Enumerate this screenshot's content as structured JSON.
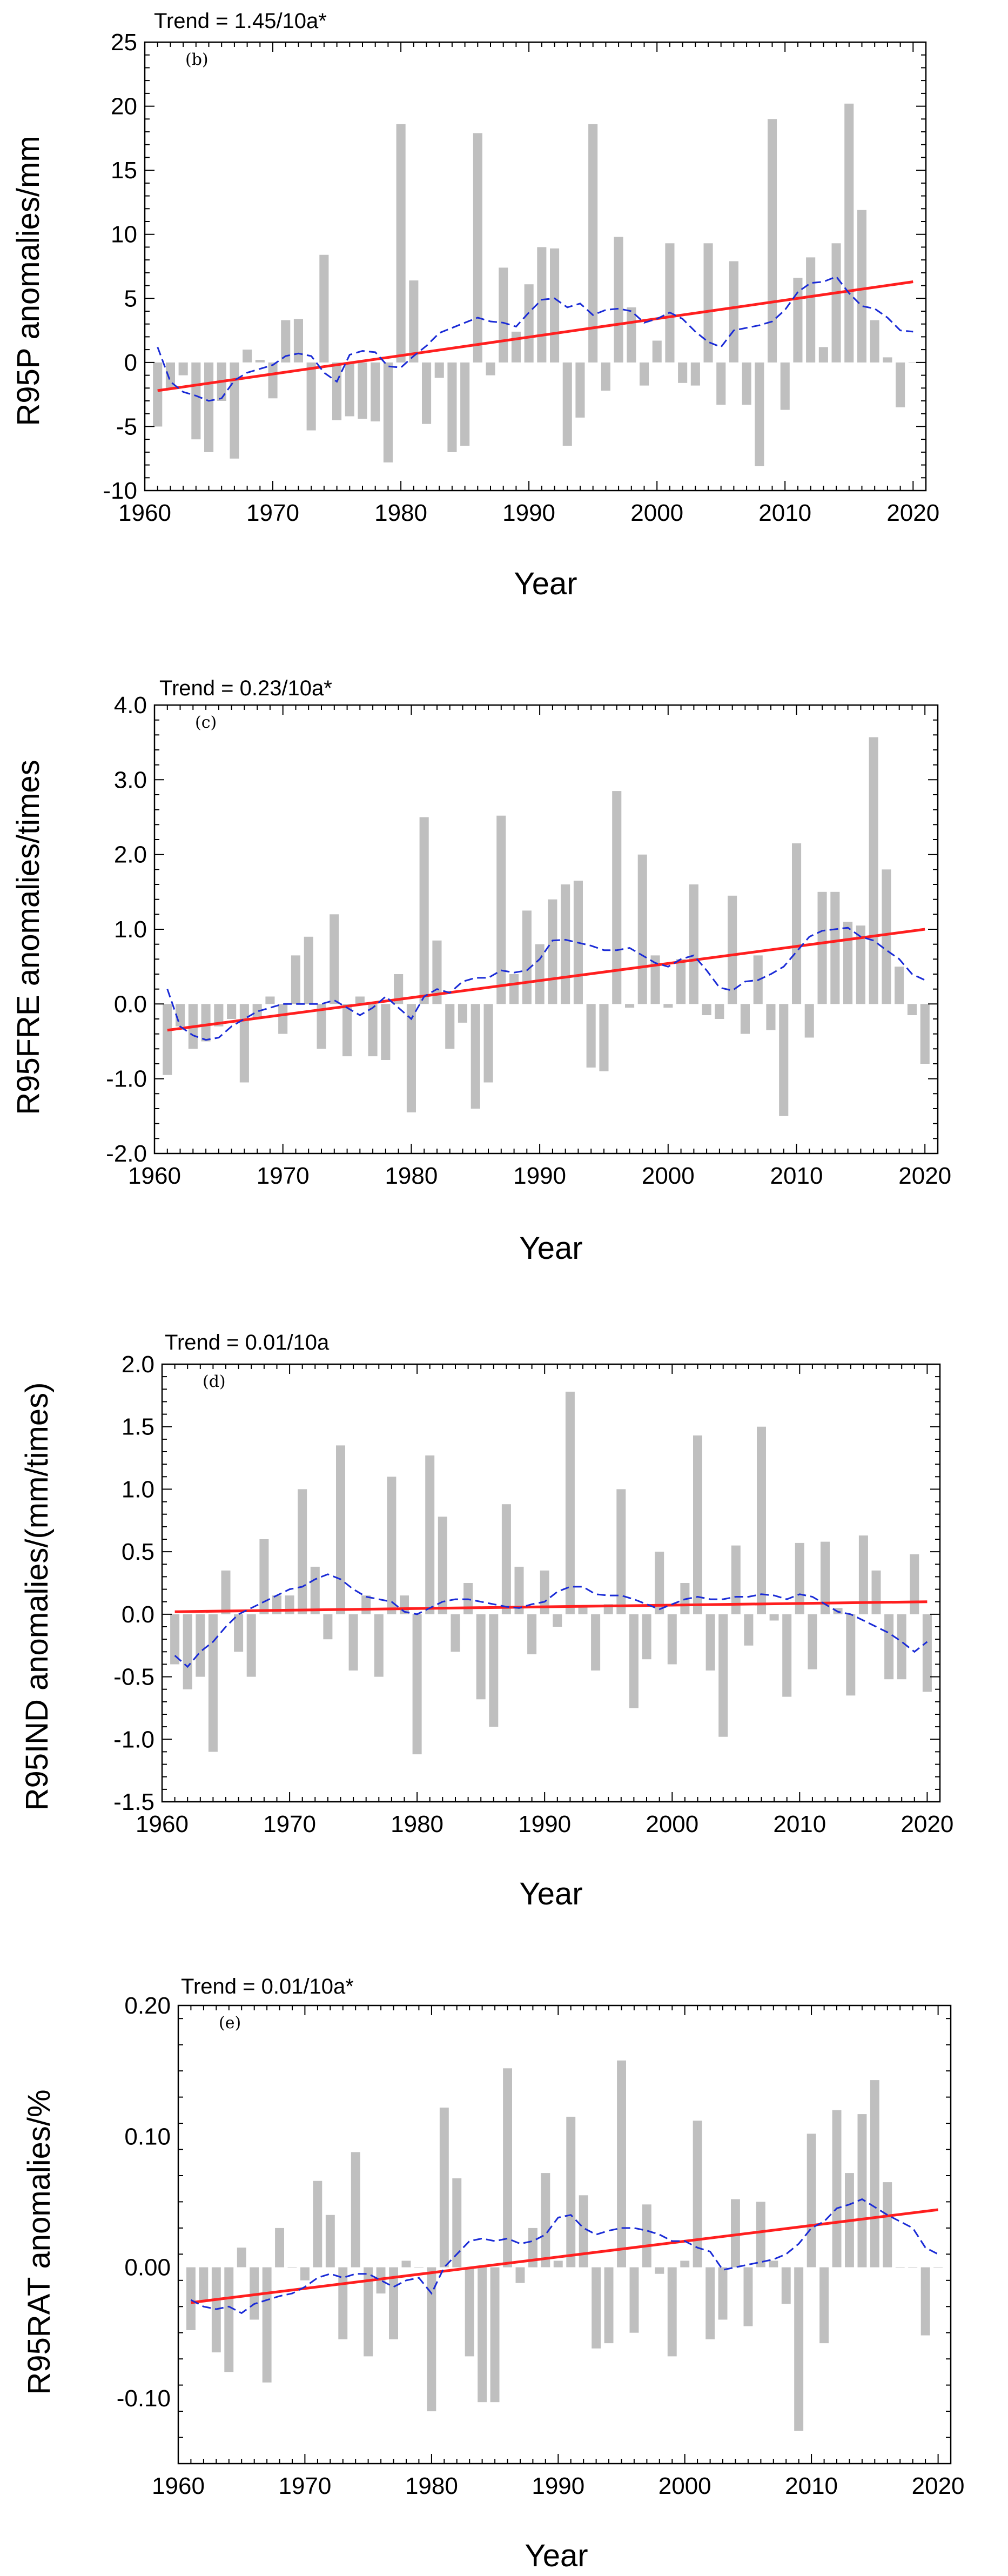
{
  "chart_data": [
    {
      "type": "bar",
      "panel_label": "(b)",
      "trend_label": "Trend = 1.45/10a*",
      "ylabel": "R95P anomalies/mm",
      "xlabel": "Year",
      "xlim": [
        1960,
        2021
      ],
      "ylim": [
        -10,
        25
      ],
      "xticks": [
        1960,
        1970,
        1980,
        1990,
        2000,
        2010,
        2020
      ],
      "yticks": [
        -10,
        -5,
        0,
        5,
        10,
        15,
        20,
        25
      ],
      "ytick_labels": [
        "-10",
        "-5",
        "0",
        "5",
        "10",
        "15",
        "20",
        "25"
      ],
      "years": [
        1961,
        1962,
        1963,
        1964,
        1965,
        1966,
        1967,
        1968,
        1969,
        1970,
        1971,
        1972,
        1973,
        1974,
        1975,
        1976,
        1977,
        1978,
        1979,
        1980,
        1981,
        1982,
        1983,
        1984,
        1985,
        1986,
        1987,
        1988,
        1989,
        1990,
        1991,
        1992,
        1993,
        1994,
        1995,
        1996,
        1997,
        1998,
        1999,
        2000,
        2001,
        2002,
        2003,
        2004,
        2005,
        2006,
        2007,
        2008,
        2009,
        2010,
        2011,
        2012,
        2013,
        2014,
        2015,
        2016,
        2017,
        2018,
        2019,
        2020
      ],
      "values": [
        -5.0,
        -2.0,
        -1.0,
        -6.0,
        -7.0,
        -3.0,
        -7.5,
        1.0,
        0.2,
        -2.8,
        3.3,
        3.4,
        -5.3,
        8.4,
        -4.5,
        -4.2,
        -4.4,
        -4.6,
        -7.8,
        18.6,
        6.4,
        -4.8,
        -1.2,
        -7.0,
        -6.5,
        17.9,
        -1.0,
        7.4,
        2.4,
        6.1,
        9.0,
        8.9,
        -6.5,
        -4.3,
        18.6,
        -2.2,
        9.8,
        4.3,
        -1.8,
        1.7,
        9.3,
        -1.6,
        -1.8,
        9.3,
        -3.3,
        7.9,
        -3.3,
        -8.1,
        19.0,
        -3.7,
        6.6,
        8.2,
        1.2,
        9.3,
        20.2,
        11.9,
        3.3,
        0.4,
        -3.5,
        0.0
      ],
      "smooth": [
        1.2,
        -1.5,
        -2.3,
        -2.6,
        -3.0,
        -2.8,
        -1.4,
        -0.8,
        -0.5,
        -0.2,
        0.5,
        0.7,
        0.5,
        -0.8,
        -1.5,
        0.6,
        0.9,
        0.8,
        -0.3,
        -0.4,
        0.5,
        1.3,
        2.3,
        2.7,
        3.1,
        3.5,
        3.2,
        3.1,
        2.8,
        3.9,
        4.9,
        5.0,
        4.3,
        4.6,
        3.7,
        4.1,
        4.2,
        4.0,
        3.1,
        3.4,
        3.9,
        3.4,
        2.4,
        1.6,
        1.2,
        2.5,
        2.7,
        2.9,
        3.2,
        4.1,
        5.5,
        6.2,
        6.3,
        6.7,
        5.4,
        4.4,
        4.2,
        3.5,
        2.5,
        2.4
      ],
      "trend_line": {
        "x": [
          1961,
          2020
        ],
        "y": [
          -2.2,
          6.3
        ]
      }
    },
    {
      "type": "bar",
      "panel_label": "(c)",
      "trend_label": "Trend = 0.23/10a*",
      "ylabel": "R95FRE anomalies/times",
      "xlabel": "Year",
      "xlim": [
        1960,
        2021
      ],
      "ylim": [
        -2.0,
        4.0
      ],
      "xticks": [
        1960,
        1970,
        1980,
        1990,
        2000,
        2010,
        2020
      ],
      "yticks": [
        -2.0,
        -1.0,
        0.0,
        1.0,
        2.0,
        3.0,
        4.0
      ],
      "ytick_labels": [
        "-2.0",
        "-1.0",
        "0.0",
        "1.0",
        "2.0",
        "3.0",
        "4.0"
      ],
      "years": [
        1961,
        1962,
        1963,
        1964,
        1965,
        1966,
        1967,
        1968,
        1969,
        1970,
        1971,
        1972,
        1973,
        1974,
        1975,
        1976,
        1977,
        1978,
        1979,
        1980,
        1981,
        1982,
        1983,
        1984,
        1985,
        1986,
        1987,
        1988,
        1989,
        1990,
        1991,
        1992,
        1993,
        1994,
        1995,
        1996,
        1997,
        1998,
        1999,
        2000,
        2001,
        2002,
        2003,
        2004,
        2005,
        2006,
        2007,
        2008,
        2009,
        2010,
        2011,
        2012,
        2013,
        2014,
        2015,
        2016,
        2017,
        2018,
        2019,
        2020
      ],
      "values": [
        -0.95,
        -0.3,
        -0.6,
        -0.5,
        -0.3,
        -0.2,
        -1.05,
        -0.2,
        0.1,
        -0.4,
        0.65,
        0.9,
        -0.6,
        1.2,
        -0.7,
        0.1,
        -0.7,
        -0.75,
        0.4,
        -1.45,
        2.5,
        0.85,
        -0.6,
        -0.25,
        -1.4,
        -1.05,
        2.52,
        0.4,
        1.25,
        0.8,
        1.4,
        1.6,
        1.65,
        -0.85,
        -0.9,
        2.85,
        -0.05,
        2.0,
        0.65,
        -0.05,
        0.6,
        1.6,
        -0.15,
        -0.2,
        1.45,
        -0.4,
        0.65,
        -0.35,
        -1.5,
        2.15,
        -0.45,
        1.5,
        1.5,
        1.1,
        1.05,
        3.57,
        1.8,
        0.5,
        -0.15,
        -0.8
      ],
      "smooth": [
        0.2,
        -0.3,
        -0.42,
        -0.48,
        -0.45,
        -0.3,
        -0.2,
        -0.1,
        -0.05,
        0.0,
        0.0,
        0.0,
        0.0,
        0.05,
        -0.05,
        -0.15,
        -0.05,
        0.1,
        -0.05,
        -0.2,
        0.1,
        0.2,
        0.15,
        0.3,
        0.35,
        0.35,
        0.45,
        0.42,
        0.45,
        0.6,
        0.85,
        0.86,
        0.82,
        0.78,
        0.72,
        0.72,
        0.75,
        0.65,
        0.55,
        0.5,
        0.6,
        0.65,
        0.45,
        0.22,
        0.18,
        0.3,
        0.32,
        0.4,
        0.5,
        0.7,
        0.9,
        0.98,
        1.0,
        1.02,
        0.9,
        0.85,
        0.72,
        0.6,
        0.4,
        0.32
      ],
      "trend_line": {
        "x": [
          1961,
          2020
        ],
        "y": [
          -0.35,
          1.0
        ]
      }
    },
    {
      "type": "bar",
      "panel_label": "(d)",
      "trend_label": "Trend = 0.01/10a",
      "ylabel": "R95IND anomalies/(mm/times)",
      "xlabel": "Year",
      "xlim": [
        1960,
        2021
      ],
      "ylim": [
        -1.5,
        2.0
      ],
      "xticks": [
        1960,
        1970,
        1980,
        1990,
        2000,
        2010,
        2020
      ],
      "yticks": [
        -1.5,
        -1.0,
        -0.5,
        0.0,
        0.5,
        1.0,
        1.5,
        2.0
      ],
      "ytick_labels": [
        "-1.5",
        "-1.0",
        "-0.5",
        "0.0",
        "0.5",
        "1.0",
        "1.5",
        "2.0"
      ],
      "years": [
        1961,
        1962,
        1963,
        1964,
        1965,
        1966,
        1967,
        1968,
        1969,
        1970,
        1971,
        1972,
        1973,
        1974,
        1975,
        1976,
        1977,
        1978,
        1979,
        1980,
        1981,
        1982,
        1983,
        1984,
        1985,
        1986,
        1987,
        1988,
        1989,
        1990,
        1991,
        1992,
        1993,
        1994,
        1995,
        1996,
        1997,
        1998,
        1999,
        2000,
        2001,
        2002,
        2003,
        2004,
        2005,
        2006,
        2007,
        2008,
        2009,
        2010,
        2011,
        2012,
        2013,
        2014,
        2015,
        2016,
        2017,
        2018,
        2019,
        2020
      ],
      "values": [
        -0.4,
        -0.6,
        -0.5,
        -1.1,
        0.35,
        -0.3,
        -0.5,
        0.6,
        0.15,
        0.15,
        1.0,
        0.38,
        -0.2,
        1.35,
        -0.45,
        0.15,
        -0.5,
        1.1,
        0.15,
        -1.12,
        1.27,
        0.78,
        -0.3,
        0.25,
        -0.68,
        -0.9,
        0.88,
        0.38,
        -0.32,
        0.35,
        -0.1,
        1.78,
        0.07,
        -0.45,
        0.08,
        1.0,
        -0.75,
        -0.36,
        0.5,
        -0.4,
        0.25,
        1.43,
        -0.45,
        -0.98,
        0.55,
        -0.25,
        1.5,
        -0.05,
        -0.66,
        0.57,
        -0.44,
        0.58,
        0.05,
        -0.65,
        0.63,
        0.35,
        -0.52,
        -0.52,
        0.48,
        -0.62
      ],
      "smooth": [
        -0.33,
        -0.42,
        -0.3,
        -0.22,
        -0.1,
        0.0,
        0.05,
        0.1,
        0.15,
        0.2,
        0.22,
        0.28,
        0.32,
        0.28,
        0.2,
        0.14,
        0.12,
        0.1,
        0.02,
        0.0,
        0.05,
        0.1,
        0.12,
        0.12,
        0.1,
        0.08,
        0.06,
        0.05,
        0.08,
        0.1,
        0.18,
        0.22,
        0.22,
        0.16,
        0.15,
        0.15,
        0.12,
        0.08,
        0.04,
        0.08,
        0.12,
        0.14,
        0.12,
        0.12,
        0.14,
        0.14,
        0.16,
        0.15,
        0.12,
        0.16,
        0.14,
        0.08,
        0.02,
        0.0,
        -0.05,
        -0.1,
        -0.15,
        -0.22,
        -0.3,
        -0.22
      ],
      "trend_line": {
        "x": [
          1961,
          2020
        ],
        "y": [
          0.02,
          0.1
        ]
      }
    },
    {
      "type": "bar",
      "panel_label": "(e)",
      "trend_label": "Trend = 0.01/10a*",
      "ylabel": "R95RAT anomalies/%",
      "xlabel": "Year",
      "xlim": [
        1960,
        2021
      ],
      "ylim": [
        -0.15,
        0.2
      ],
      "xticks": [
        1960,
        1970,
        1980,
        1990,
        2000,
        2010,
        2020
      ],
      "yticks": [
        -0.1,
        0.0,
        0.1,
        0.2
      ],
      "ytick_labels": [
        "-0.10",
        "0.00",
        "0.10",
        "0.20"
      ],
      "years": [
        1961,
        1962,
        1963,
        1964,
        1965,
        1966,
        1967,
        1968,
        1969,
        1970,
        1971,
        1972,
        1973,
        1974,
        1975,
        1976,
        1977,
        1978,
        1979,
        1980,
        1981,
        1982,
        1983,
        1984,
        1985,
        1986,
        1987,
        1988,
        1989,
        1990,
        1991,
        1992,
        1993,
        1994,
        1995,
        1996,
        1997,
        1998,
        1999,
        2000,
        2001,
        2002,
        2003,
        2004,
        2005,
        2006,
        2007,
        2008,
        2009,
        2010,
        2011,
        2012,
        2013,
        2014,
        2015,
        2016,
        2017,
        2018,
        2019,
        2020
      ],
      "values": [
        -0.048,
        -0.025,
        -0.065,
        -0.08,
        0.015,
        -0.04,
        -0.088,
        0.03,
        0.0,
        -0.01,
        0.066,
        0.04,
        -0.055,
        0.088,
        -0.068,
        -0.02,
        -0.055,
        0.005,
        0.0,
        -0.11,
        0.122,
        0.068,
        -0.068,
        -0.103,
        -0.103,
        0.152,
        -0.012,
        0.03,
        0.072,
        0.005,
        0.115,
        0.055,
        -0.062,
        -0.058,
        0.158,
        -0.05,
        0.048,
        -0.005,
        -0.068,
        0.005,
        0.112,
        -0.055,
        -0.04,
        0.052,
        -0.045,
        0.05,
        0.005,
        -0.028,
        -0.125,
        0.102,
        -0.058,
        0.12,
        0.072,
        0.117,
        0.143,
        0.065,
        0.0,
        0.0,
        -0.052,
        0.0
      ],
      "smooth": [
        -0.025,
        -0.03,
        -0.032,
        -0.03,
        -0.035,
        -0.028,
        -0.025,
        -0.022,
        -0.02,
        -0.015,
        -0.008,
        -0.005,
        -0.008,
        -0.005,
        -0.005,
        -0.01,
        -0.015,
        -0.01,
        -0.008,
        -0.02,
        0.0,
        0.01,
        0.02,
        0.022,
        0.02,
        0.022,
        0.018,
        0.02,
        0.025,
        0.038,
        0.04,
        0.03,
        0.025,
        0.028,
        0.03,
        0.03,
        0.028,
        0.025,
        0.02,
        0.02,
        0.015,
        0.012,
        -0.002,
        0.0,
        0.002,
        0.004,
        0.006,
        0.01,
        0.018,
        0.03,
        0.035,
        0.045,
        0.048,
        0.052,
        0.046,
        0.04,
        0.035,
        0.03,
        0.015,
        0.01
      ],
      "trend_line": {
        "x": [
          1961,
          2020
        ],
        "y": [
          -0.027,
          0.044
        ]
      }
    }
  ],
  "colors": {
    "bar": "#bfbfbf",
    "trend_line": "#ff1f1f",
    "smooth_line": "#1a2bd6",
    "axis": "#000000",
    "background": "#ffffff"
  }
}
